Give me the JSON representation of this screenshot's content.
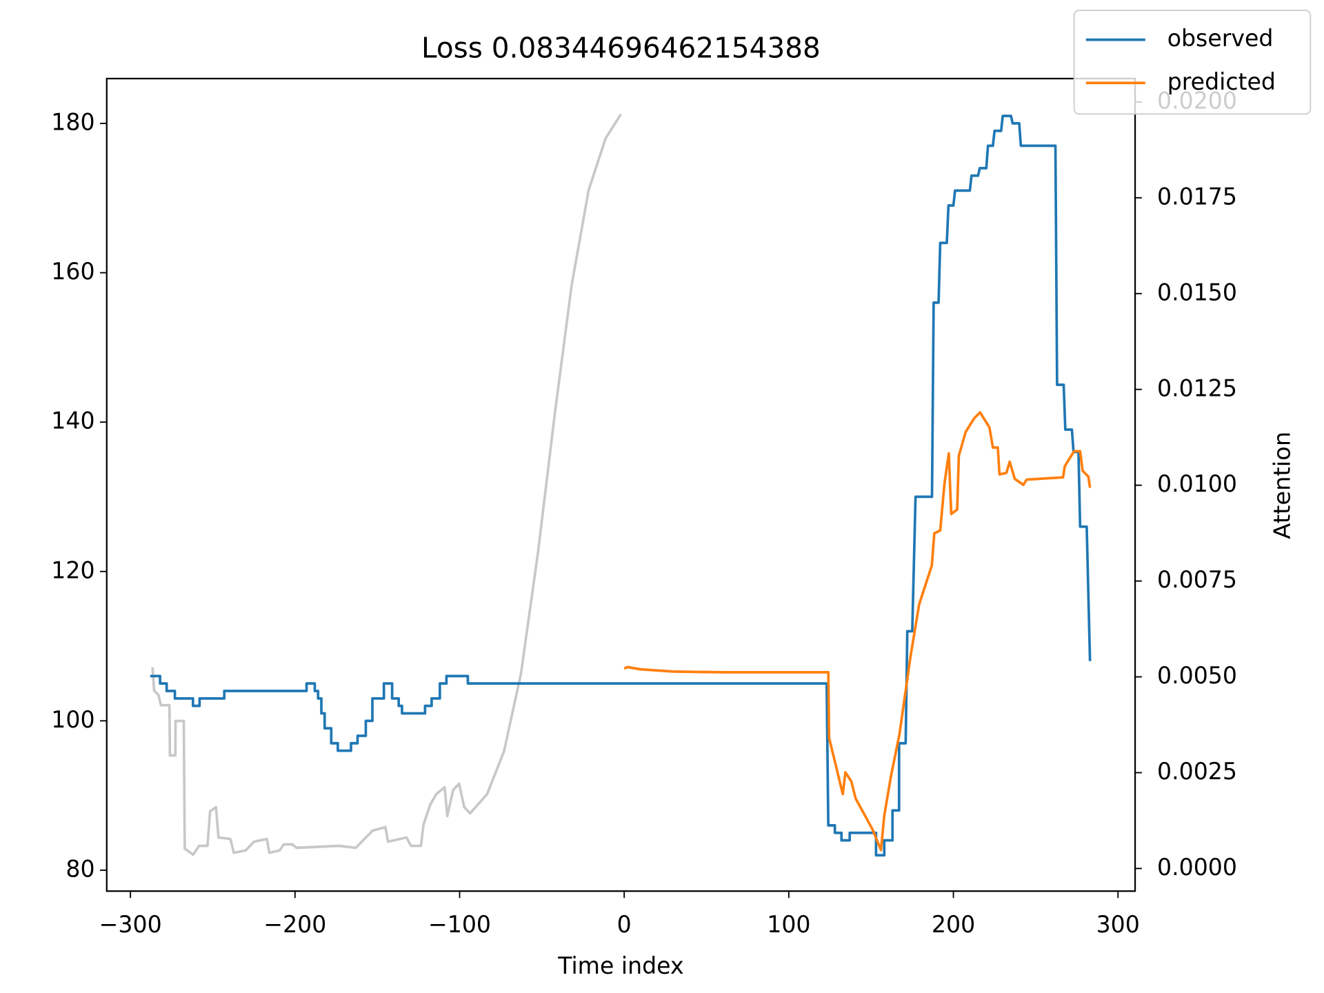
{
  "chart_data": {
    "type": "line",
    "title": "Loss 0.08344696462154388",
    "xlabel": "Time index",
    "y2label": "Attention",
    "xlim": [
      -314.4,
      310.4
    ],
    "ylim": [
      77.2,
      186.0
    ],
    "y2lim": [
      -0.00059,
      0.02061
    ],
    "xticks": [
      {
        "value": -300,
        "label": "−300"
      },
      {
        "value": -200,
        "label": "−200"
      },
      {
        "value": -100,
        "label": "−100"
      },
      0,
      100,
      200,
      300
    ],
    "yticks": [
      80,
      100,
      120,
      140,
      160,
      180
    ],
    "y2ticks": [
      {
        "value": 0,
        "label": "0.0000"
      },
      {
        "value": 0.0025,
        "label": "0.0025"
      },
      {
        "value": 0.005,
        "label": "0.0050"
      },
      {
        "value": 0.0075,
        "label": "0.0075"
      },
      {
        "value": 0.01,
        "label": "0.0100"
      },
      {
        "value": 0.0125,
        "label": "0.0125"
      },
      {
        "value": 0.015,
        "label": "0.0150"
      },
      {
        "value": 0.0175,
        "label": "0.0175"
      },
      {
        "value": 0.02,
        "label": "0.0200"
      }
    ],
    "legend": "upper right",
    "series": [
      {
        "name": "observed",
        "color": "#1f77b4",
        "x": [
          -288,
          -282,
          -282,
          -278,
          -278,
          -273,
          -273,
          -262,
          -262,
          -258,
          -258,
          -243,
          -243,
          -193,
          -193,
          -188,
          -188,
          -186,
          -186,
          -184,
          -184,
          -182,
          -182,
          -178,
          -178,
          -174,
          -174,
          -166,
          -166,
          -162,
          -162,
          -157,
          -157,
          -153,
          -153,
          -146,
          -146,
          -141,
          -141,
          -137,
          -137,
          -135,
          -135,
          -121,
          -121,
          -117,
          -117,
          -112,
          -112,
          -108,
          -108,
          -95,
          -95,
          123,
          124,
          128,
          128,
          132,
          132,
          137,
          137,
          153,
          153,
          158,
          158,
          163,
          163,
          167,
          167,
          171,
          172,
          175,
          177,
          187,
          188,
          191,
          192,
          196,
          197,
          200,
          201,
          210,
          211,
          215,
          216,
          220,
          221,
          224,
          225,
          229,
          230,
          235,
          236,
          240,
          241,
          262,
          263,
          267,
          268,
          272,
          273,
          276,
          277,
          281,
          283
        ],
        "values": [
          106,
          106,
          105,
          105,
          104,
          104,
          103,
          103,
          102,
          102,
          103,
          103,
          104,
          104,
          105,
          105,
          104,
          104,
          103,
          103,
          101,
          101,
          99,
          99,
          97,
          97,
          96,
          96,
          97,
          97,
          98,
          98,
          100,
          100,
          103,
          103,
          105,
          105,
          103,
          103,
          102,
          102,
          101,
          101,
          102,
          102,
          103,
          103,
          105,
          105,
          106,
          106,
          105,
          105,
          86,
          86,
          85,
          85,
          84,
          84,
          85,
          85,
          82,
          82,
          84,
          84,
          88,
          88,
          97,
          97,
          112,
          112,
          130,
          130,
          156,
          156,
          164,
          164,
          169,
          169,
          171,
          171,
          173,
          173,
          174,
          174,
          177,
          177,
          179,
          179,
          181,
          181,
          180,
          180,
          177,
          177,
          145,
          145,
          139,
          139,
          136,
          136,
          126,
          126,
          108
        ]
      },
      {
        "name": "predicted",
        "color": "#ff7f0e",
        "x": [
          0,
          2,
          10,
          30,
          60,
          124,
          124.5,
          128.7,
          132.8,
          134.4,
          138,
          140.6,
          150.8,
          156,
          158,
          162,
          167.3,
          174,
          179.2,
          186.9,
          188.4,
          192,
          194.6,
          197.2,
          198.7,
          202.3,
          203.3,
          207.5,
          212.6,
          216.2,
          221.9,
          224,
          227,
          228,
          232.2,
          234.2,
          237.3,
          242.5,
          244.5,
          266.6,
          267.7,
          273.3,
          277,
          278.5,
          282,
          283
        ],
        "values": [
          107,
          107.2,
          106.9,
          106.6,
          106.5,
          106.5,
          97.7,
          93.9,
          90.2,
          93.1,
          91.9,
          89.6,
          85.5,
          82.7,
          87.3,
          92.5,
          98.3,
          108.7,
          115.6,
          120.8,
          125.1,
          125.5,
          131.8,
          135.8,
          127.7,
          128.3,
          135.5,
          138.7,
          140.5,
          141.3,
          139.3,
          136.6,
          136.6,
          133,
          133.2,
          134.7,
          132.4,
          131.6,
          132.3,
          132.6,
          134.1,
          136.1,
          136.1,
          133.5,
          132.7,
          131.2
        ]
      },
      {
        "color": "#c8c8c8",
        "axis": "y2",
        "x": [
          -286.6,
          -285.6,
          -283,
          -281.5,
          -276.3,
          -276,
          -272.7,
          -272.6,
          -267.6,
          -267,
          -261.9,
          -258.3,
          -253.2,
          -251.6,
          -248,
          -246.5,
          -239.3,
          -237.2,
          -230,
          -224.9,
          -217.1,
          -215.6,
          -209.4,
          -206.8,
          -201.7,
          -199.1,
          -173.4,
          -163.1,
          -152.8,
          -145.1,
          -143.5,
          -132.2,
          -129.6,
          -123.5,
          -121.9,
          -117.8,
          -114.2,
          -109.1,
          -107.5,
          -103.9,
          -100.3,
          -97.2,
          -93.6,
          -83.3,
          -73,
          -62.7,
          -52.4,
          -42.2,
          -31.9,
          -21.6,
          -11.3,
          -2
        ],
        "values": [
          0.00525,
          0.00464,
          0.00453,
          0.00426,
          0.00426,
          0.00295,
          0.00295,
          0.00385,
          0.00385,
          0.00052,
          0.00036,
          0.00059,
          0.00059,
          0.00149,
          0.0016,
          0.00081,
          0.00077,
          0.00041,
          0.00047,
          0.0007,
          0.00077,
          0.00041,
          0.00047,
          0.00063,
          0.00063,
          0.00054,
          0.00059,
          0.00054,
          0.00099,
          0.00108,
          0.0007,
          0.00081,
          0.00059,
          0.00059,
          0.00115,
          0.00167,
          0.00194,
          0.00212,
          0.00137,
          0.00205,
          0.00221,
          0.0016,
          0.00144,
          0.00194,
          0.00306,
          0.00509,
          0.00824,
          0.01185,
          0.01523,
          0.0177,
          0.01905,
          0.01968
        ]
      }
    ]
  }
}
